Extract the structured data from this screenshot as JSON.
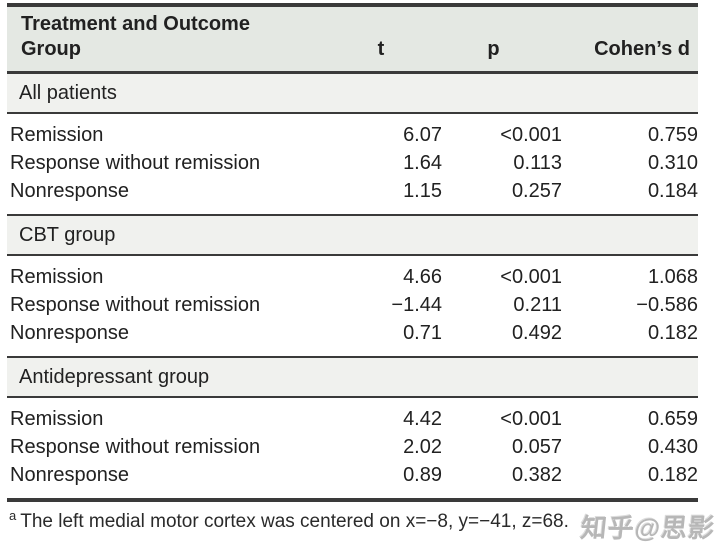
{
  "header": {
    "group_col": "Treatment and Outcome Group",
    "t_col": "t",
    "p_col": "p",
    "d_col": "Cohen’s d"
  },
  "sections": [
    {
      "label": "All patients",
      "rows": [
        {
          "label": "Remission",
          "t": "6.07",
          "p": "<0.001",
          "d": "0.759"
        },
        {
          "label": "Response without remission",
          "t": "1.64",
          "p": "0.113",
          "d": "0.310"
        },
        {
          "label": "Nonresponse",
          "t": "1.15",
          "p": "0.257",
          "d": "0.184"
        }
      ]
    },
    {
      "label": "CBT group",
      "rows": [
        {
          "label": "Remission",
          "t": "4.66",
          "p": "<0.001",
          "d": "1.068"
        },
        {
          "label": "Response without remission",
          "t": "−1.44",
          "p": "0.211",
          "d": "−0.586"
        },
        {
          "label": "Nonresponse",
          "t": "0.71",
          "p": "0.492",
          "d": "0.182"
        }
      ]
    },
    {
      "label": "Antidepressant group",
      "rows": [
        {
          "label": "Remission",
          "t": "4.42",
          "p": "<0.001",
          "d": "0.659"
        },
        {
          "label": "Response without remission",
          "t": "2.02",
          "p": "0.057",
          "d": "0.430"
        },
        {
          "label": "Nonresponse",
          "t": "0.89",
          "p": "0.382",
          "d": "0.182"
        }
      ]
    }
  ],
  "footnote": {
    "marker": "a",
    "text": "The left medial motor cortex was centered on x=−8, y=−41, z=68."
  },
  "watermark": "知乎@思影",
  "colors": {
    "header_bg": "#e4e8e3",
    "section_bg": "#f0f1ee",
    "rule": "#3a3a3a",
    "text": "#212121",
    "watermark": "#ababab"
  }
}
